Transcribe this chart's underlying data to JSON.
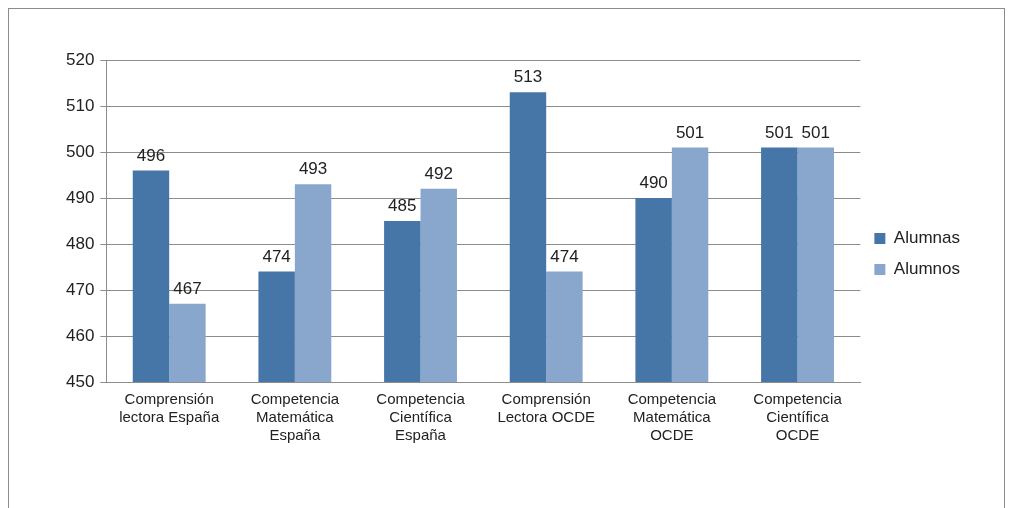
{
  "chart_data": {
    "type": "bar",
    "categories": [
      "Comprensión lectora España",
      "Competencia Matemática España",
      "Competencia Científica España",
      "Comprensión Lectora OCDE",
      "Competencia Matemática OCDE",
      "Competencia Científica OCDE"
    ],
    "series": [
      {
        "name": "Alumnas",
        "color": "#4675a8",
        "values": [
          496,
          474,
          485,
          513,
          490,
          501
        ]
      },
      {
        "name": "Alumnos",
        "color": "#89a6cd",
        "values": [
          467,
          493,
          492,
          474,
          501,
          501
        ]
      }
    ],
    "ylim": [
      450,
      520
    ],
    "yticks": [
      450,
      460,
      470,
      480,
      490,
      500,
      510,
      520
    ],
    "grid": "y",
    "legend": "right",
    "data_labels": true
  }
}
